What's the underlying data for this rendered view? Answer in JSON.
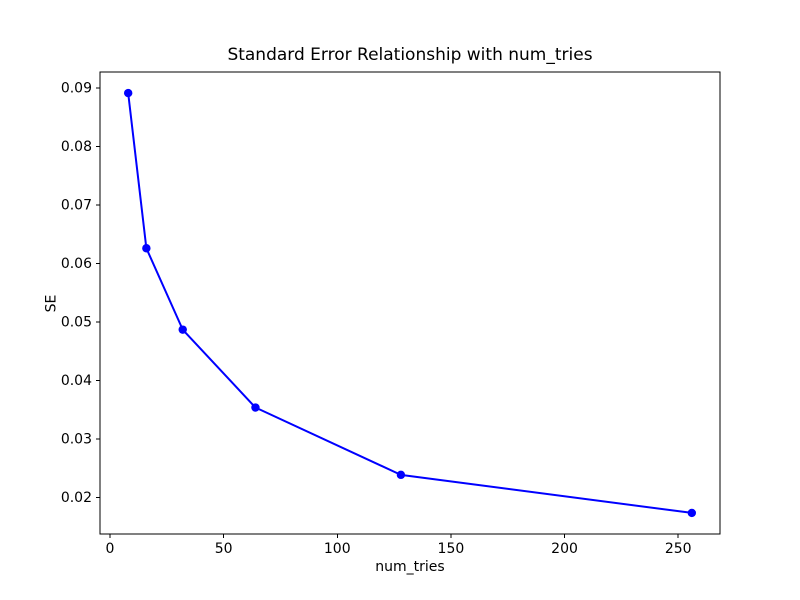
{
  "chart_data": {
    "type": "line",
    "title": "Standard Error Relationship with num_tries",
    "xlabel": "num_tries",
    "ylabel": "SE",
    "series": [
      {
        "name": "SE",
        "x": [
          8,
          16,
          32,
          64,
          128,
          256
        ],
        "y": [
          0.0891,
          0.0626,
          0.0487,
          0.0354,
          0.0239,
          0.0174
        ],
        "color": "#0000ff",
        "marker": "circle"
      }
    ],
    "xlim": [
      -4.4,
      268.4
    ],
    "ylim": [
      0.0138,
      0.0927
    ],
    "xticks": [
      0,
      50,
      100,
      150,
      200,
      250
    ],
    "yticks": [
      0.02,
      0.03,
      0.04,
      0.05,
      0.06,
      0.07,
      0.08,
      0.09
    ],
    "ytick_decimals": 2,
    "grid": false,
    "legend": "none",
    "background": "#ffffff",
    "axis_color": "#000000"
  }
}
